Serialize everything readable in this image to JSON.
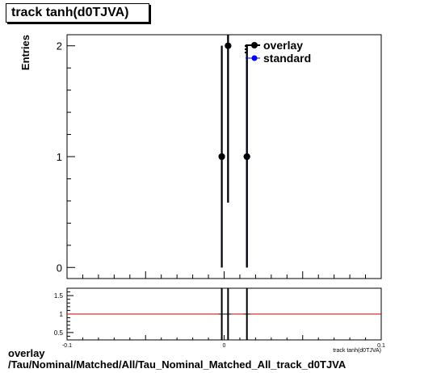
{
  "chart_data": [
    {
      "panel": "main",
      "type": "scatter",
      "title": "track tanh(d0TJVA)",
      "ylabel": "Entries",
      "xlabel": "",
      "xlim": [
        -0.1,
        0.1
      ],
      "ylim": [
        -0.1,
        2.1
      ],
      "y_tick_labels": [
        "0",
        "1",
        "2"
      ],
      "grid": false,
      "legend_position": "top-right",
      "series": [
        {
          "name": "overlay",
          "color": "#000000",
          "points": [
            {
              "x": -0.0015,
              "y": 1,
              "err": 1
            },
            {
              "x": 0.0025,
              "y": 2,
              "err": 1.414
            },
            {
              "x": 0.0145,
              "y": 1,
              "err": 1
            }
          ]
        },
        {
          "name": "standard",
          "color": "#0000ff",
          "points": [
            {
              "x": -0.0015,
              "y": 1,
              "err": 1
            },
            {
              "x": 0.0025,
              "y": 2,
              "err": 1.414
            },
            {
              "x": 0.0145,
              "y": 1,
              "err": 1
            }
          ]
        }
      ]
    },
    {
      "panel": "ratio",
      "type": "line",
      "xlabel": "track tanh(d0TJVA)",
      "xlim": [
        -0.1,
        0.1
      ],
      "ylim": [
        0.3,
        1.7
      ],
      "x_tick_labels": [
        "-0.1",
        "0",
        "0.1"
      ],
      "y_tick_labels": [
        "0.5",
        "1",
        "1.5"
      ],
      "reference_line": 1,
      "reference_color": "#cc0000",
      "points": [
        {
          "x": -0.0015,
          "y": 1,
          "err": 1
        },
        {
          "x": 0.0025,
          "y": 1,
          "err": 1
        },
        {
          "x": 0.0145,
          "y": 1,
          "err": 1
        }
      ]
    }
  ],
  "footer": {
    "line1": "overlay",
    "line2": "/Tau/Nominal/Matched/All/Tau_Nominal_Matched_All_track_d0TJVA"
  }
}
